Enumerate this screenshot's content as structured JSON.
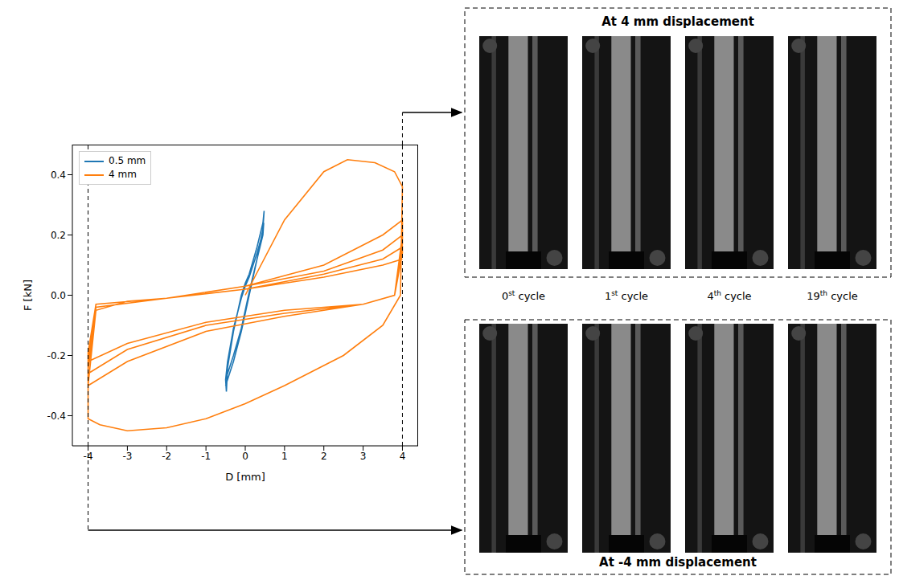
{
  "chart_data": {
    "type": "line",
    "x_label": "D [mm]",
    "y_label": "F [kN]",
    "xlim": [
      -4.4,
      4.4
    ],
    "xticks": [
      -4,
      -3,
      -2,
      -1,
      0,
      1,
      2,
      3,
      4
    ],
    "ylim": [
      -0.5,
      0.5
    ],
    "yticks": [
      -0.4,
      -0.2,
      {
        "value": 0,
        "label": "0.0"
      },
      0.2,
      0.4
    ],
    "grid": false,
    "legend": "upper left",
    "reference_lines": [
      -4,
      4
    ],
    "series": [
      {
        "name": "0.5 mm",
        "color": "#1f77b4",
        "x": [
          -0.5,
          -0.3,
          -0.1,
          0,
          0.1,
          0.3,
          0.45,
          0.48,
          0.45,
          0.3,
          0.1,
          0,
          -0.1,
          -0.3,
          -0.45,
          -0.48,
          -0.5,
          -0.3,
          -0.1,
          0,
          0.1,
          0.3,
          0.45,
          0.47,
          0.45,
          0.3,
          0.1,
          0,
          -0.1,
          -0.3,
          -0.45,
          -0.5
        ],
        "values": [
          -0.3,
          -0.22,
          -0.12,
          -0.06,
          0.0,
          0.12,
          0.22,
          0.28,
          0.24,
          0.16,
          0.07,
          0.04,
          0.0,
          -0.12,
          -0.24,
          -0.32,
          -0.28,
          -0.2,
          -0.11,
          -0.05,
          0.01,
          0.12,
          0.2,
          0.24,
          0.21,
          0.14,
          0.06,
          0.03,
          -0.01,
          -0.11,
          -0.22,
          -0.28
        ]
      },
      {
        "name": "4 mm",
        "color": "#ff7f0e",
        "x": [
          0,
          1,
          2,
          2.6,
          3.3,
          3.8,
          4,
          3.95,
          3.5,
          2.5,
          1,
          0,
          -1,
          -2,
          -3,
          -3.7,
          -4,
          -4,
          -3.8,
          -3,
          -2,
          0,
          2,
          3.5,
          4,
          4,
          3.8,
          3,
          1,
          -1,
          -3,
          -4,
          -4,
          -3.8,
          -2,
          0,
          2,
          3.5,
          4,
          4,
          3.8,
          3,
          1,
          -1,
          -3,
          -4,
          -4,
          -3.8,
          -2,
          0,
          2,
          3.5,
          4,
          4,
          3.8,
          3,
          1,
          -1,
          -3,
          -4,
          -4,
          -3.8,
          -2,
          0,
          2,
          3.5,
          4
        ],
        "values": [
          0.0,
          0.25,
          0.41,
          0.45,
          0.44,
          0.41,
          0.36,
          0.0,
          -0.1,
          -0.2,
          -0.3,
          -0.36,
          -0.41,
          -0.44,
          -0.45,
          -0.43,
          -0.41,
          -0.3,
          -0.05,
          -0.02,
          -0.01,
          0.03,
          0.1,
          0.2,
          0.25,
          0.2,
          0.0,
          -0.03,
          -0.07,
          -0.12,
          -0.22,
          -0.3,
          -0.25,
          -0.04,
          -0.01,
          0.03,
          0.08,
          0.15,
          0.2,
          0.17,
          0.0,
          -0.03,
          -0.06,
          -0.1,
          -0.18,
          -0.26,
          -0.22,
          -0.04,
          -0.01,
          0.02,
          0.07,
          0.12,
          0.16,
          0.14,
          0.0,
          -0.03,
          -0.05,
          -0.09,
          -0.16,
          -0.22,
          -0.19,
          -0.03,
          -0.01,
          0.02,
          0.06,
          0.1,
          0.12
        ]
      }
    ]
  },
  "panels": [
    {
      "title": "At 4 mm displacement",
      "x_value": 4
    },
    {
      "title": "At -4 mm displacement",
      "x_value": -4
    }
  ],
  "cycles": [
    "0st cycle",
    "1st cycle",
    "4th cycle",
    "19th cycle"
  ]
}
